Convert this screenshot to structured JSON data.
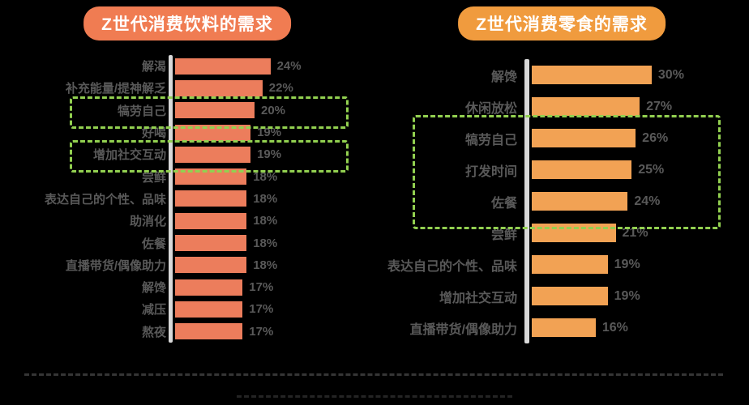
{
  "page": {
    "background_color": "#000000",
    "text_color": "#595959",
    "highlight_color": "#92d050"
  },
  "chart_data": [
    {
      "type": "bar",
      "orientation": "horizontal",
      "title": "Z世代消费饮料的需求",
      "title_bg_color": "#f07c52",
      "bar_color": "#ec7d5c",
      "value_suffix": "%",
      "xlim": [
        0,
        24
      ],
      "grid": false,
      "legend": "none",
      "categories": [
        "解渴",
        "补充能量/提神解乏",
        "犒劳自己",
        "好喝",
        "增加社交互动",
        "尝鲜",
        "表达自己的个性、品味",
        "助消化",
        "佐餐",
        "直播带货/偶像助力",
        "解馋",
        "减压",
        "熬夜"
      ],
      "values": [
        24,
        22,
        20,
        19,
        19,
        18,
        18,
        18,
        18,
        18,
        17,
        17,
        17
      ],
      "highlight_groups": [
        {
          "from": 2,
          "to": 2
        },
        {
          "from": 4,
          "to": 4
        }
      ]
    },
    {
      "type": "bar",
      "orientation": "horizontal",
      "title": "Z世代消费零食的需求",
      "title_bg_color": "#f09b3e",
      "bar_color": "#f2a254",
      "value_suffix": "%",
      "xlim": [
        0,
        30
      ],
      "grid": false,
      "legend": "none",
      "categories": [
        "解馋",
        "休闲放松",
        "犒劳自己",
        "打发时间",
        "佐餐",
        "尝鲜",
        "表达自己的个性、品味",
        "增加社交互动",
        "直播带货/偶像助力"
      ],
      "values": [
        30,
        27,
        26,
        25,
        24,
        21,
        19,
        19,
        16
      ],
      "highlight_groups": [
        {
          "from": 2,
          "to": 4
        }
      ]
    }
  ]
}
